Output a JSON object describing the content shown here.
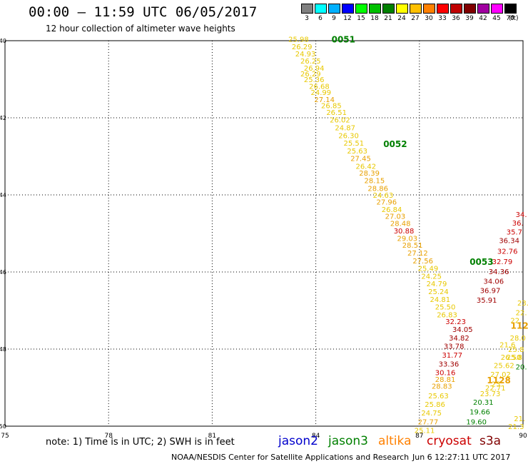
{
  "header": {
    "title": "00:00 – 11:59 UTC 06/05/2017",
    "subtitle": "12 hour collection of altimeter wave heights"
  },
  "legend": {
    "unit": "(ft)",
    "bins": [
      {
        "label": "3",
        "color": "#808080"
      },
      {
        "label": "6",
        "color": "#00ffff"
      },
      {
        "label": "9",
        "color": "#00b0ff"
      },
      {
        "label": "12",
        "color": "#0000ff"
      },
      {
        "label": "15",
        "color": "#00ff00"
      },
      {
        "label": "18",
        "color": "#00c000"
      },
      {
        "label": "21",
        "color": "#008000"
      },
      {
        "label": "24",
        "color": "#ffff00"
      },
      {
        "label": "27",
        "color": "#ffc000"
      },
      {
        "label": "30",
        "color": "#ff8000"
      },
      {
        "label": "33",
        "color": "#ff0000"
      },
      {
        "label": "36",
        "color": "#c00000"
      },
      {
        "label": "39",
        "color": "#800000"
      },
      {
        "label": "42",
        "color": "#a000a0"
      },
      {
        "label": "45",
        "color": "#ff00ff"
      },
      {
        "label": "70",
        "color": "#000000"
      }
    ]
  },
  "map": {
    "lon_range": [
      75,
      90
    ],
    "lat_range": [
      -50,
      -40
    ],
    "lon_ticks": [
      "75",
      "78",
      "81",
      "84",
      "87",
      "90"
    ],
    "lat_ticks": [
      {
        "label": "-40",
        "lat": -40
      },
      {
        "label": "-42",
        "lat": -42
      },
      {
        "label": "-44",
        "lat": -44
      },
      {
        "label": "-46",
        "lat": -46
      },
      {
        "label": "-48",
        "lat": -48
      },
      {
        "label": "-50",
        "lat": -50
      }
    ],
    "colors": {
      "c24": "#e8c800",
      "c27": "#e8a000",
      "c30": "#cc0000",
      "c33": "#cc0000",
      "c36": "#a00000",
      "c21": "#008000",
      "c18": "#00a000"
    },
    "pass_labels": [
      {
        "text": "0051",
        "lon": 84.8,
        "lat": -39.95,
        "color": "#008000"
      },
      {
        "text": "0052",
        "lon": 86.3,
        "lat": -42.67,
        "color": "#008000"
      },
      {
        "text": "0053",
        "lon": 88.8,
        "lat": -45.72,
        "color": "#008000"
      },
      {
        "text": "1128",
        "lon": 89.3,
        "lat": -48.8,
        "color": "#e8a000"
      },
      {
        "text": "112",
        "lon": 89.9,
        "lat": -47.38,
        "color": "#e8a000"
      }
    ],
    "track1": [
      {
        "v": "25.98",
        "lon": 83.5,
        "lat": -39.95
      },
      {
        "v": "26.29",
        "lon": 83.6,
        "lat": -40.15
      },
      {
        "v": "24.93",
        "lon": 83.7,
        "lat": -40.33
      },
      {
        "v": "26.25",
        "lon": 83.85,
        "lat": -40.52
      },
      {
        "v": "26.94",
        "lon": 83.95,
        "lat": -40.7
      },
      {
        "v": "26.29",
        "lon": 83.85,
        "lat": -40.85
      },
      {
        "v": "25.36",
        "lon": 83.95,
        "lat": -41.0
      },
      {
        "v": "26.68",
        "lon": 84.1,
        "lat": -41.18
      },
      {
        "v": "24.99",
        "lon": 84.15,
        "lat": -41.33
      },
      {
        "v": "27.14",
        "lon": 84.25,
        "lat": -41.52
      },
      {
        "v": "26.85",
        "lon": 84.45,
        "lat": -41.68
      },
      {
        "v": "26.51",
        "lon": 84.6,
        "lat": -41.85
      },
      {
        "v": "26.02",
        "lon": 84.7,
        "lat": -42.05
      },
      {
        "v": "24.87",
        "lon": 84.85,
        "lat": -42.25
      },
      {
        "v": "26.30",
        "lon": 84.95,
        "lat": -42.45
      },
      {
        "v": "25.51",
        "lon": 85.1,
        "lat": -42.65
      },
      {
        "v": "25.63",
        "lon": 85.2,
        "lat": -42.85
      },
      {
        "v": "27.45",
        "lon": 85.3,
        "lat": -43.05
      },
      {
        "v": "26.42",
        "lon": 85.45,
        "lat": -43.25
      },
      {
        "v": "28.39",
        "lon": 85.55,
        "lat": -43.43
      },
      {
        "v": "28.15",
        "lon": 85.7,
        "lat": -43.62
      },
      {
        "v": "28.86",
        "lon": 85.8,
        "lat": -43.82
      },
      {
        "v": "24.63",
        "lon": 85.95,
        "lat": -44.0
      },
      {
        "v": "27.96",
        "lon": 86.05,
        "lat": -44.18
      },
      {
        "v": "26.84",
        "lon": 86.2,
        "lat": -44.37
      },
      {
        "v": "27.03",
        "lon": 86.3,
        "lat": -44.55
      },
      {
        "v": "28.48",
        "lon": 86.45,
        "lat": -44.73
      },
      {
        "v": "30.88",
        "lon": 86.55,
        "lat": -44.93
      },
      {
        "v": "29.03",
        "lon": 86.65,
        "lat": -45.12
      },
      {
        "v": "28.51",
        "lon": 86.8,
        "lat": -45.3
      },
      {
        "v": "27.12",
        "lon": 86.95,
        "lat": -45.5
      },
      {
        "v": "27.56",
        "lon": 87.1,
        "lat": -45.7
      },
      {
        "v": "25.49",
        "lon": 87.25,
        "lat": -45.9
      },
      {
        "v": "24.25",
        "lon": 87.35,
        "lat": -46.1
      },
      {
        "v": "24.79",
        "lon": 87.5,
        "lat": -46.3
      },
      {
        "v": "25.24",
        "lon": 87.55,
        "lat": -46.5
      },
      {
        "v": "24.81",
        "lon": 87.6,
        "lat": -46.7
      },
      {
        "v": "25.50",
        "lon": 87.75,
        "lat": -46.9
      },
      {
        "v": "26.83",
        "lon": 87.8,
        "lat": -47.1
      },
      {
        "v": "32.23",
        "lon": 88.05,
        "lat": -47.28
      },
      {
        "v": "34.05",
        "lon": 88.25,
        "lat": -47.48
      },
      {
        "v": "34.82",
        "lon": 88.15,
        "lat": -47.7
      },
      {
        "v": "33.78",
        "lon": 88.0,
        "lat": -47.92
      },
      {
        "v": "31.77",
        "lon": 87.95,
        "lat": -48.15
      },
      {
        "v": "33.36",
        "lon": 87.85,
        "lat": -48.38
      },
      {
        "v": "30.16",
        "lon": 87.75,
        "lat": -48.6
      },
      {
        "v": "28.81",
        "lon": 87.75,
        "lat": -48.78
      },
      {
        "v": "28.83",
        "lon": 87.65,
        "lat": -48.95
      },
      {
        "v": "25.63",
        "lon": 87.55,
        "lat": -49.2
      },
      {
        "v": "25.86",
        "lon": 87.45,
        "lat": -49.43
      },
      {
        "v": "24.75",
        "lon": 87.35,
        "lat": -49.65
      },
      {
        "v": "27.77",
        "lon": 87.25,
        "lat": -49.88
      },
      {
        "v": "25.11",
        "lon": 87.15,
        "lat": -50.1
      }
    ],
    "track2": [
      {
        "v": "34.",
        "lon": 89.95,
        "lat": -44.5,
        "c": "c33"
      },
      {
        "v": "36.",
        "lon": 89.85,
        "lat": -44.72,
        "c": "c30"
      },
      {
        "v": "35.7",
        "lon": 89.75,
        "lat": -44.95,
        "c": "c30"
      },
      {
        "v": "36.34",
        "lon": 89.6,
        "lat": -45.18,
        "c": "c36"
      },
      {
        "v": "32.76",
        "lon": 89.55,
        "lat": -45.45,
        "c": "c33"
      },
      {
        "v": "32.79",
        "lon": 89.4,
        "lat": -45.72,
        "c": "c33"
      },
      {
        "v": "34.36",
        "lon": 89.3,
        "lat": -45.98,
        "c": "c36"
      },
      {
        "v": "34.06",
        "lon": 89.15,
        "lat": -46.23,
        "c": "c36"
      },
      {
        "v": "36.97",
        "lon": 89.05,
        "lat": -46.47,
        "c": "c36"
      },
      {
        "v": "35.91",
        "lon": 88.95,
        "lat": -46.72,
        "c": "c36"
      },
      {
        "v": "23.",
        "lon": 90.0,
        "lat": -46.8,
        "c": "c24"
      },
      {
        "v": "22.",
        "lon": 89.95,
        "lat": -47.05,
        "c": "c24"
      },
      {
        "v": "22.",
        "lon": 89.8,
        "lat": -47.25,
        "c": "c24"
      },
      {
        "v": "28.0",
        "lon": 89.85,
        "lat": -47.7,
        "c": "c24"
      },
      {
        "v": "21.6",
        "lon": 89.55,
        "lat": -47.88,
        "c": "c24"
      },
      {
        "v": "25.8",
        "lon": 89.8,
        "lat": -48.0,
        "c": "c24"
      },
      {
        "v": "25.8",
        "lon": 89.75,
        "lat": -48.2,
        "c": "c24"
      },
      {
        "v": "26.50",
        "lon": 89.65,
        "lat": -48.2,
        "c": "c24"
      },
      {
        "v": "25.62",
        "lon": 89.45,
        "lat": -48.42,
        "c": "c24"
      },
      {
        "v": "20.",
        "lon": 89.95,
        "lat": -48.45,
        "c": "c21"
      },
      {
        "v": "27.02",
        "lon": 89.35,
        "lat": -48.65,
        "c": "c24"
      },
      {
        "v": "23.",
        "lon": 89.25,
        "lat": -48.9,
        "c": "c24"
      },
      {
        "v": "22.71",
        "lon": 89.2,
        "lat": -49.0,
        "c": "c24"
      },
      {
        "v": "23.73",
        "lon": 89.05,
        "lat": -49.15,
        "c": "c24"
      },
      {
        "v": "20.31",
        "lon": 88.85,
        "lat": -49.37,
        "c": "c21"
      },
      {
        "v": "19.66",
        "lon": 88.75,
        "lat": -49.62,
        "c": "c21"
      },
      {
        "v": "19.60",
        "lon": 88.65,
        "lat": -49.88,
        "c": "c21"
      },
      {
        "v": "21.",
        "lon": 89.9,
        "lat": -49.8,
        "c": "c24"
      },
      {
        "v": "21.3",
        "lon": 89.8,
        "lat": -50.0,
        "c": "c24"
      }
    ]
  },
  "footer": {
    "note": "note: 1) Time is in UTC; 2) SWH is in feet",
    "satellites": [
      {
        "name": "jason2",
        "color": "#0000cc",
        "left": 390
      },
      {
        "name": "jason3",
        "color": "#008000",
        "left": 460
      },
      {
        "name": "altika",
        "color": "#ff8000",
        "left": 530
      },
      {
        "name": "cryosat",
        "color": "#cc0000",
        "left": 598
      },
      {
        "name": "s3a",
        "color": "#800000",
        "left": 672
      }
    ],
    "credit": "NOAA/NESDIS Center for Satellite Applications and Research",
    "timestamp": "Jun  6 12:27:11 UTC 2017"
  }
}
